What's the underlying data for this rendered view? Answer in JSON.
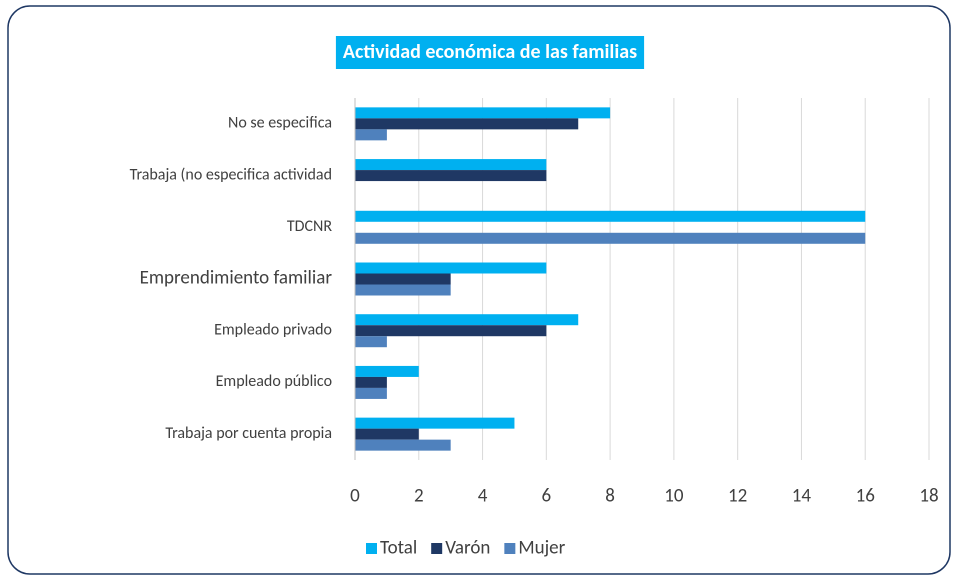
{
  "chart_data": {
    "type": "barh",
    "title": "Actividad económica de las familias",
    "categories": [
      "No se especifica",
      "Trabaja (no especifica actividad",
      "TDCNR",
      "Emprendimiento familiar",
      "Empleado privado",
      "Empleado público",
      "Trabaja por cuenta propia"
    ],
    "series": [
      {
        "name": "Total",
        "color": "#00b0f0",
        "values": [
          8,
          6,
          16,
          6,
          7,
          2,
          5
        ]
      },
      {
        "name": "Varón",
        "color": "#1f3864",
        "values": [
          7,
          6,
          0,
          3,
          6,
          1,
          2
        ]
      },
      {
        "name": "Mujer",
        "color": "#4f81bd",
        "values": [
          1,
          0,
          16,
          3,
          1,
          1,
          3
        ]
      }
    ],
    "xlim": [
      0,
      18
    ],
    "xticks": [
      0,
      2,
      4,
      6,
      8,
      10,
      12,
      14,
      16,
      18
    ],
    "grid": true,
    "legend": "bottom"
  }
}
